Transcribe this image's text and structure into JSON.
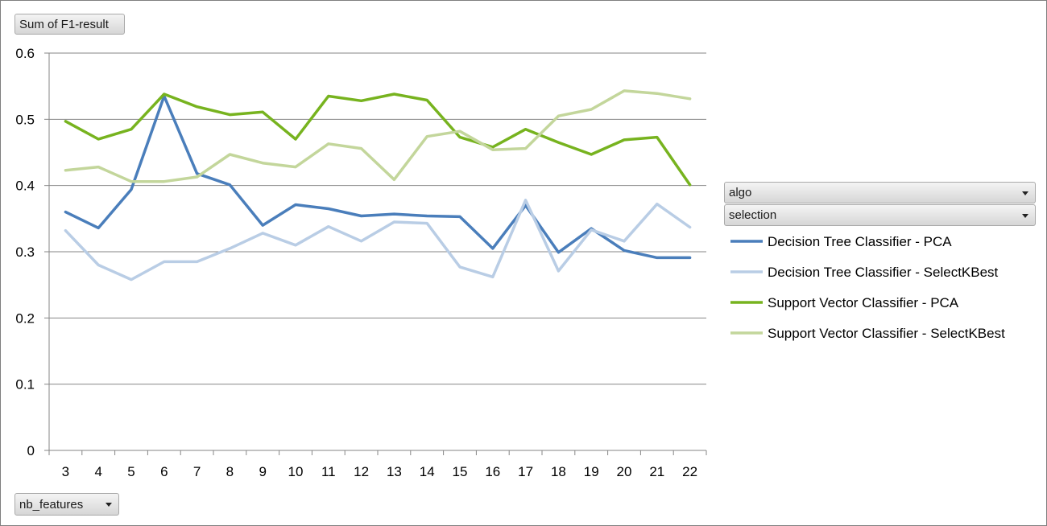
{
  "buttons": {
    "value_field": "Sum of F1-result",
    "axis_field": "nb_features",
    "legend_field_1": "algo",
    "legend_field_2": "selection"
  },
  "chart_data": {
    "type": "line",
    "title": "",
    "xlabel": "",
    "ylabel": "",
    "categories": [
      "3",
      "4",
      "5",
      "6",
      "7",
      "8",
      "9",
      "10",
      "11",
      "12",
      "13",
      "14",
      "15",
      "16",
      "17",
      "18",
      "19",
      "20",
      "21",
      "22"
    ],
    "ylim": [
      0,
      0.6
    ],
    "yticks": [
      "0",
      "0.1",
      "0.2",
      "0.3",
      "0.4",
      "0.5",
      "0.6"
    ],
    "grid": true,
    "legend_position": "right",
    "series": [
      {
        "name": "Decision Tree Classifier - PCA",
        "color": "#4a7ebb",
        "values": [
          0.36,
          0.336,
          0.394,
          0.535,
          0.418,
          0.401,
          0.34,
          0.371,
          0.365,
          0.354,
          0.357,
          0.354,
          0.353,
          0.305,
          0.37,
          0.299,
          0.335,
          0.302,
          0.291,
          0.291
        ]
      },
      {
        "name": "Decision Tree Classifier - SelectKBest",
        "color": "#b9cde5",
        "values": [
          0.332,
          0.28,
          0.258,
          0.285,
          0.285,
          0.305,
          0.328,
          0.31,
          0.338,
          0.316,
          0.345,
          0.343,
          0.277,
          0.262,
          0.378,
          0.271,
          0.333,
          0.316,
          0.372,
          0.337
        ]
      },
      {
        "name": "Support Vector Classifier - PCA",
        "color": "#77b31f",
        "values": [
          0.497,
          0.47,
          0.485,
          0.538,
          0.519,
          0.507,
          0.511,
          0.47,
          0.535,
          0.528,
          0.538,
          0.529,
          0.473,
          0.458,
          0.485,
          0.465,
          0.447,
          0.469,
          0.473,
          0.401
        ]
      },
      {
        "name": "Support Vector Classifier - SelectKBest",
        "color": "#c3d69b",
        "values": [
          0.423,
          0.428,
          0.406,
          0.406,
          0.413,
          0.447,
          0.434,
          0.428,
          0.463,
          0.456,
          0.409,
          0.474,
          0.482,
          0.454,
          0.456,
          0.505,
          0.515,
          0.543,
          0.539,
          0.531
        ]
      }
    ]
  }
}
